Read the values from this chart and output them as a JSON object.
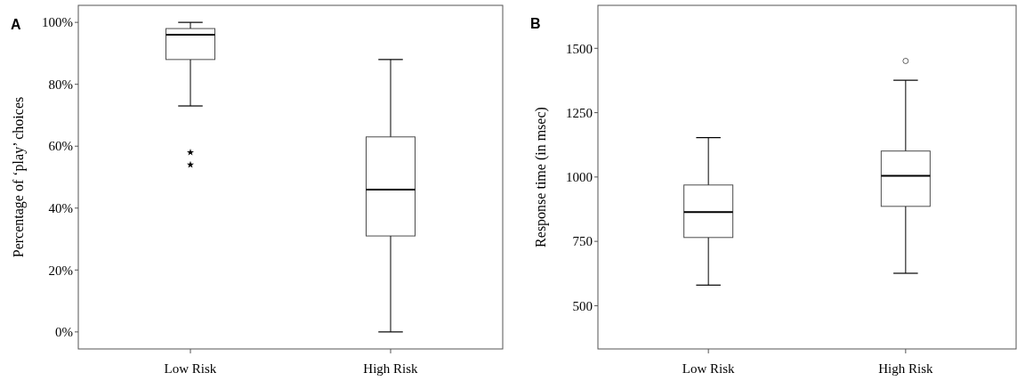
{
  "chart_data": [
    {
      "type": "box",
      "title": "A",
      "ylabel": "Percentage of ‘play’ choices",
      "categories": [
        "Low Risk",
        "High Risk"
      ],
      "marker": "star",
      "color": "#000000",
      "boxes": [
        {
          "low": 73,
          "q1": 88,
          "median": 96,
          "q3": 98,
          "high": 100,
          "outliers": [
            58,
            54
          ]
        },
        {
          "low": 0,
          "q1": 31,
          "median": 46,
          "q3": 63,
          "high": 88
        }
      ],
      "ylim": [
        -5.5,
        105.5
      ],
      "yticks": [
        {
          "value": 0,
          "label": "0%"
        },
        {
          "value": 20,
          "label": "20%"
        },
        {
          "value": 40,
          "label": "40%"
        },
        {
          "value": 60,
          "label": "60%"
        },
        {
          "value": 80,
          "label": "80%"
        },
        {
          "value": 100,
          "label": "100%"
        }
      ],
      "grid": false
    },
    {
      "type": "box",
      "title": "B",
      "ylabel": "Response time (in msec)",
      "categories": [
        "Low Risk",
        "High Risk"
      ],
      "marker": "circle",
      "color": "#000000",
      "boxes": [
        {
          "low": 580,
          "q1": 765,
          "median": 864,
          "q3": 969,
          "high": 1153
        },
        {
          "low": 626,
          "q1": 886,
          "median": 1005,
          "q3": 1101,
          "high": 1376,
          "outliers": [
            1451
          ]
        }
      ],
      "ylim": [
        332,
        1667
      ],
      "yticks": [
        500,
        750,
        1000,
        1250,
        1500
      ],
      "grid": false
    }
  ]
}
